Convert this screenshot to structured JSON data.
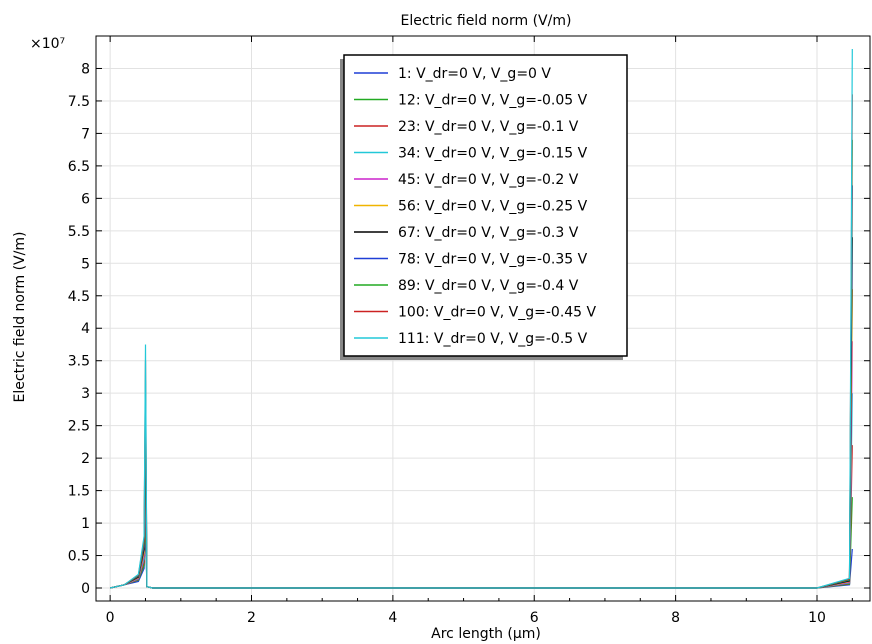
{
  "chart_data": {
    "type": "line",
    "title": "Electric field norm (V/m)",
    "xlabel": "Arc length (µm)",
    "ylabel": "Electric field norm (V/m)",
    "y_multiplier": "×10⁷",
    "xlim": [
      -0.2,
      10.75
    ],
    "ylim": [
      -0.2,
      8.5
    ],
    "xticks": [
      0,
      2,
      4,
      6,
      8,
      10
    ],
    "yticks": [
      0,
      0.5,
      1,
      1.5,
      2,
      2.5,
      3,
      3.5,
      4,
      4.5,
      5,
      5.5,
      6,
      6.5,
      7,
      7.5,
      8
    ],
    "grid": true,
    "legend_position": "top-center",
    "series": [
      {
        "name": "1: V_dr=0 V, V_g=0 V",
        "color": "#1f3fd6",
        "x": [
          0,
          0.2,
          0.4,
          0.48,
          0.5,
          0.52,
          0.6,
          2,
          4,
          6,
          8,
          10,
          10.46,
          10.5
        ],
        "y": [
          0,
          0.05,
          0.1,
          0.3,
          0.9,
          0.02,
          0,
          0,
          0,
          0,
          0,
          0,
          0.05,
          0.6
        ]
      },
      {
        "name": "12: V_dr=0 V, V_g=-0.05 V",
        "color": "#22aa22",
        "x": [
          0,
          0.2,
          0.4,
          0.48,
          0.5,
          0.52,
          0.6,
          2,
          4,
          6,
          8,
          10,
          10.46,
          10.5
        ],
        "y": [
          0,
          0.05,
          0.12,
          0.35,
          1.1,
          0.02,
          0,
          0,
          0,
          0,
          0,
          0,
          0.06,
          1.4
        ]
      },
      {
        "name": "23: V_dr=0 V, V_g=-0.1 V",
        "color": "#cc2222",
        "x": [
          0,
          0.2,
          0.4,
          0.48,
          0.5,
          0.52,
          0.6,
          2,
          4,
          6,
          8,
          10,
          10.46,
          10.5
        ],
        "y": [
          0,
          0.05,
          0.13,
          0.4,
          1.4,
          0.02,
          0,
          0,
          0,
          0,
          0,
          0,
          0.07,
          2.2
        ]
      },
      {
        "name": "34: V_dr=0 V, V_g=-0.15 V",
        "color": "#22c8d8",
        "x": [
          0,
          0.2,
          0.4,
          0.48,
          0.5,
          0.52,
          0.6,
          2,
          4,
          6,
          8,
          10,
          10.46,
          10.5
        ],
        "y": [
          0,
          0.05,
          0.14,
          0.45,
          1.7,
          0.02,
          0,
          0,
          0,
          0,
          0,
          0,
          0.08,
          3.0
        ]
      },
      {
        "name": "45: V_dr=0 V, V_g=-0.2 V",
        "color": "#cc22cc",
        "x": [
          0,
          0.2,
          0.4,
          0.48,
          0.5,
          0.52,
          0.6,
          2,
          4,
          6,
          8,
          10,
          10.46,
          10.5
        ],
        "y": [
          0,
          0.05,
          0.15,
          0.5,
          2.0,
          0.02,
          0,
          0,
          0,
          0,
          0,
          0,
          0.09,
          3.8
        ]
      },
      {
        "name": "56: V_dr=0 V, V_g=-0.25 V",
        "color": "#f0b400",
        "x": [
          0,
          0.2,
          0.4,
          0.48,
          0.5,
          0.52,
          0.6,
          2,
          4,
          6,
          8,
          10,
          10.46,
          10.5
        ],
        "y": [
          0,
          0.05,
          0.16,
          0.55,
          2.3,
          0.02,
          0,
          0,
          0,
          0,
          0,
          0,
          0.1,
          4.6
        ]
      },
      {
        "name": "67: V_dr=0 V, V_g=-0.3 V",
        "color": "#000000",
        "x": [
          0,
          0.2,
          0.4,
          0.48,
          0.5,
          0.52,
          0.6,
          2,
          4,
          6,
          8,
          10,
          10.46,
          10.5
        ],
        "y": [
          0,
          0.05,
          0.17,
          0.6,
          2.6,
          0.02,
          0,
          0,
          0,
          0,
          0,
          0,
          0.11,
          5.4
        ]
      },
      {
        "name": "78: V_dr=0 V, V_g=-0.35 V",
        "color": "#1f3fd6",
        "x": [
          0,
          0.2,
          0.4,
          0.48,
          0.5,
          0.52,
          0.6,
          2,
          4,
          6,
          8,
          10,
          10.46,
          10.5
        ],
        "y": [
          0,
          0.05,
          0.18,
          0.65,
          2.9,
          0.02,
          0,
          0,
          0,
          0,
          0,
          0,
          0.12,
          6.2
        ]
      },
      {
        "name": "89: V_dr=0 V, V_g=-0.4 V",
        "color": "#22aa22",
        "x": [
          0,
          0.2,
          0.4,
          0.48,
          0.5,
          0.52,
          0.6,
          2,
          4,
          6,
          8,
          10,
          10.46,
          10.5
        ],
        "y": [
          0,
          0.05,
          0.19,
          0.7,
          3.2,
          0.02,
          0,
          0,
          0,
          0,
          0,
          0,
          0.13,
          6.9
        ]
      },
      {
        "name": "100: V_dr=0 V, V_g=-0.45 V",
        "color": "#cc2222",
        "x": [
          0,
          0.2,
          0.4,
          0.48,
          0.5,
          0.52,
          0.6,
          2,
          4,
          6,
          8,
          10,
          10.46,
          10.5
        ],
        "y": [
          0,
          0.05,
          0.2,
          0.75,
          3.5,
          0.02,
          0,
          0,
          0,
          0,
          0,
          0,
          0.14,
          7.6
        ]
      },
      {
        "name": "111: V_dr=0 V, V_g=-0.5 V",
        "color": "#22c8d8",
        "x": [
          0,
          0.2,
          0.4,
          0.48,
          0.5,
          0.52,
          0.6,
          2,
          4,
          6,
          8,
          10,
          10.46,
          10.5
        ],
        "y": [
          0,
          0.05,
          0.21,
          0.8,
          3.75,
          0.02,
          0,
          0,
          0,
          0,
          0,
          0,
          0.15,
          8.3
        ]
      }
    ]
  }
}
